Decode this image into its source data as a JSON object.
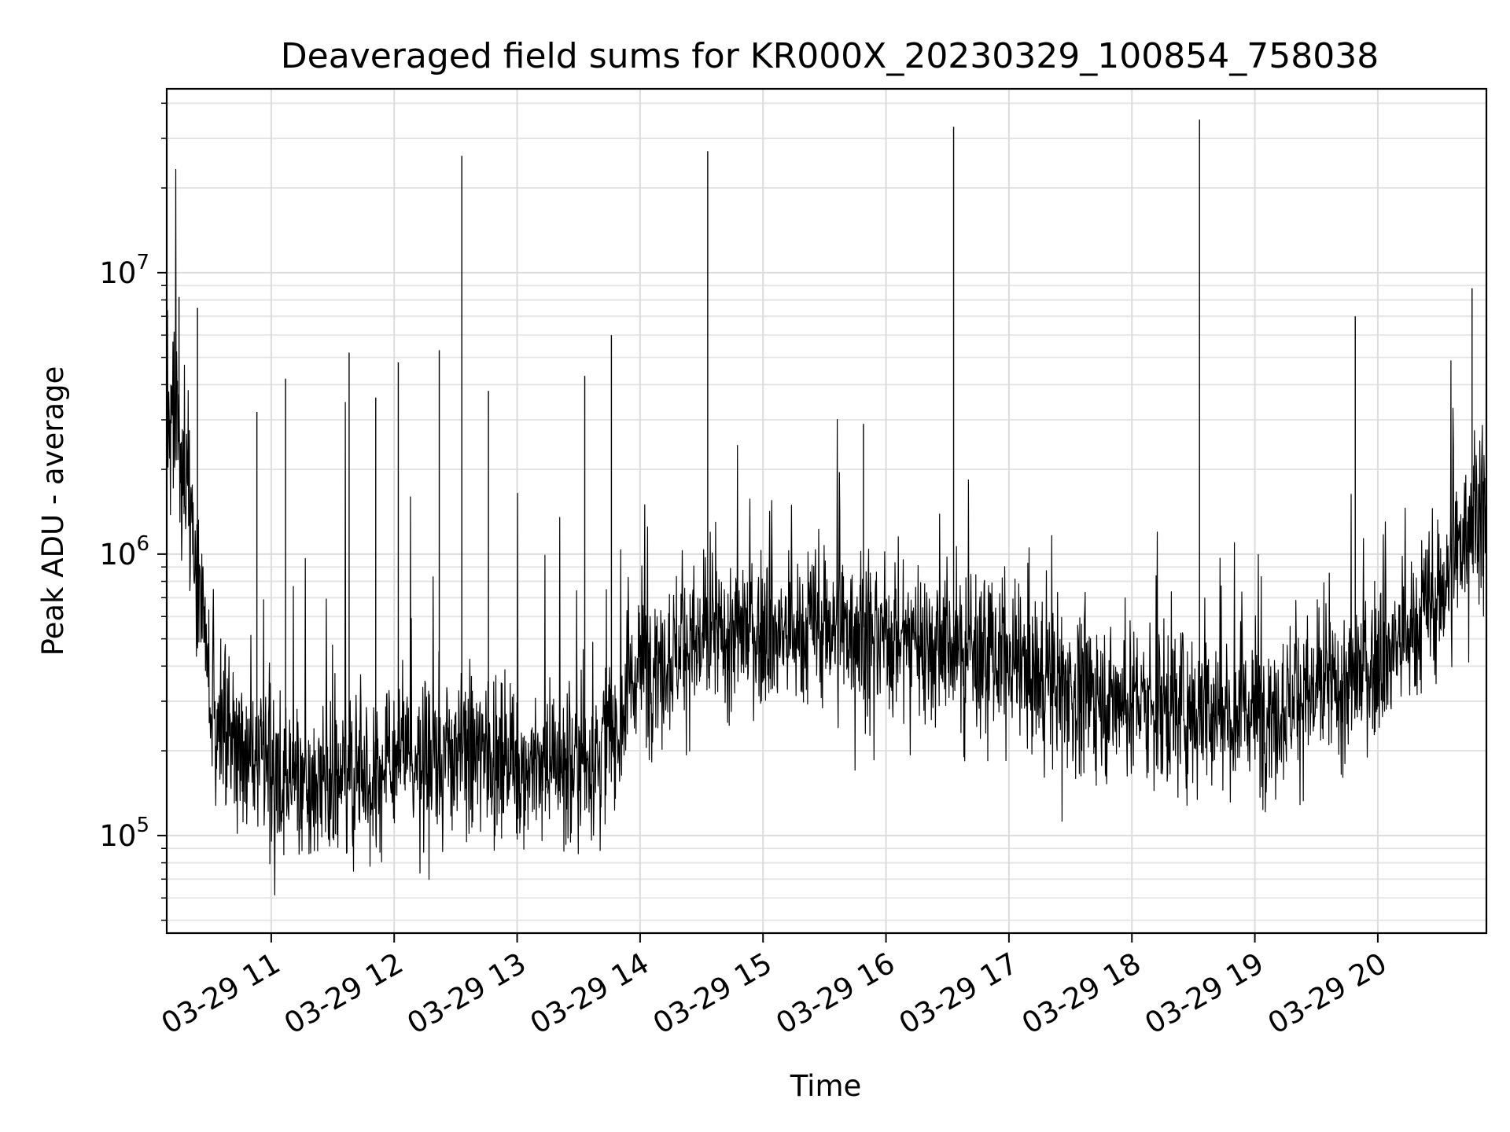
{
  "chart_data": {
    "type": "line",
    "title": "Deaveraged field sums for KR000X_20230329_100854_758038",
    "xlabel": "Time",
    "ylabel": "Peak ADU - average",
    "yscale": "log",
    "ylim": [
      45000,
      45000000
    ],
    "xlim": [
      "03-29 10:09",
      "03-29 20:53"
    ],
    "grid": true,
    "line_color": "#000000",
    "x_ticks": [
      "03-29 11",
      "03-29 12",
      "03-29 13",
      "03-29 14",
      "03-29 15",
      "03-29 16",
      "03-29 17",
      "03-29 18",
      "03-29 19",
      "03-29 20"
    ],
    "y_ticks": [
      {
        "base": "10",
        "exp": "5",
        "value": 100000
      },
      {
        "base": "10",
        "exp": "6",
        "value": 1000000
      },
      {
        "base": "10",
        "exp": "7",
        "value": 10000000
      }
    ],
    "series": [
      {
        "x": [
          "03-29 10:09",
          "03-29 10:15",
          "03-29 10:20",
          "03-29 10:25",
          "03-29 10:30",
          "03-29 10:40",
          "03-29 10:50",
          "03-29 11:00",
          "03-29 11:15",
          "03-29 11:30",
          "03-29 11:45",
          "03-29 12:00",
          "03-29 12:15",
          "03-29 12:30",
          "03-29 12:45",
          "03-29 13:00",
          "03-29 13:15",
          "03-29 13:30",
          "03-29 13:40",
          "03-29 13:50",
          "03-29 14:00",
          "03-29 14:15",
          "03-29 14:30",
          "03-29 14:45",
          "03-29 15:00",
          "03-29 15:15",
          "03-29 15:30",
          "03-29 15:45",
          "03-29 16:00",
          "03-29 16:15",
          "03-29 16:30",
          "03-29 16:45",
          "03-29 17:00",
          "03-29 17:15",
          "03-29 17:30",
          "03-29 17:45",
          "03-29 18:00",
          "03-29 18:15",
          "03-29 18:30",
          "03-29 18:45",
          "03-29 19:00",
          "03-29 19:15",
          "03-29 19:30",
          "03-29 19:45",
          "03-29 20:00",
          "03-29 20:15",
          "03-29 20:30",
          "03-29 20:40",
          "03-29 20:45",
          "03-29 20:50",
          "03-29 20:53"
        ],
        "values": [
          3000000,
          2500000,
          1500000,
          700000,
          350000,
          220000,
          180000,
          170000,
          155000,
          160000,
          170000,
          175000,
          185000,
          190000,
          200000,
          180000,
          175000,
          180000,
          200000,
          260000,
          420000,
          450000,
          480000,
          520000,
          530000,
          520000,
          560000,
          560000,
          520000,
          500000,
          470000,
          450000,
          400000,
          360000,
          330000,
          310000,
          300000,
          290000,
          280000,
          285000,
          280000,
          300000,
          320000,
          340000,
          420000,
          520000,
          700000,
          1100000,
          1400000,
          1600000,
          1300000
        ]
      },
      {
        "name": "",
        "x": [
          "03-29 10:15",
          "03-29 10:24",
          "03-29 10:53",
          "03-29 11:07",
          "03-29 11:38",
          "03-29 11:51",
          "03-29 12:02",
          "03-29 12:22",
          "03-29 12:33",
          "03-29 12:46",
          "03-29 13:33",
          "03-29 13:46",
          "03-29 14:33",
          "03-29 15:49",
          "03-29 16:33",
          "03-29 18:33",
          "03-29 19:49",
          "03-29 20:46"
        ],
        "values": [
          8200000,
          7500000,
          3200000,
          4200000,
          5200000,
          3600000,
          4800000,
          5300000,
          26000000,
          3800000,
          4300000,
          6000000,
          27000000,
          2900000,
          33000000,
          35000000,
          7000000,
          8800000
        ]
      }
    ]
  }
}
